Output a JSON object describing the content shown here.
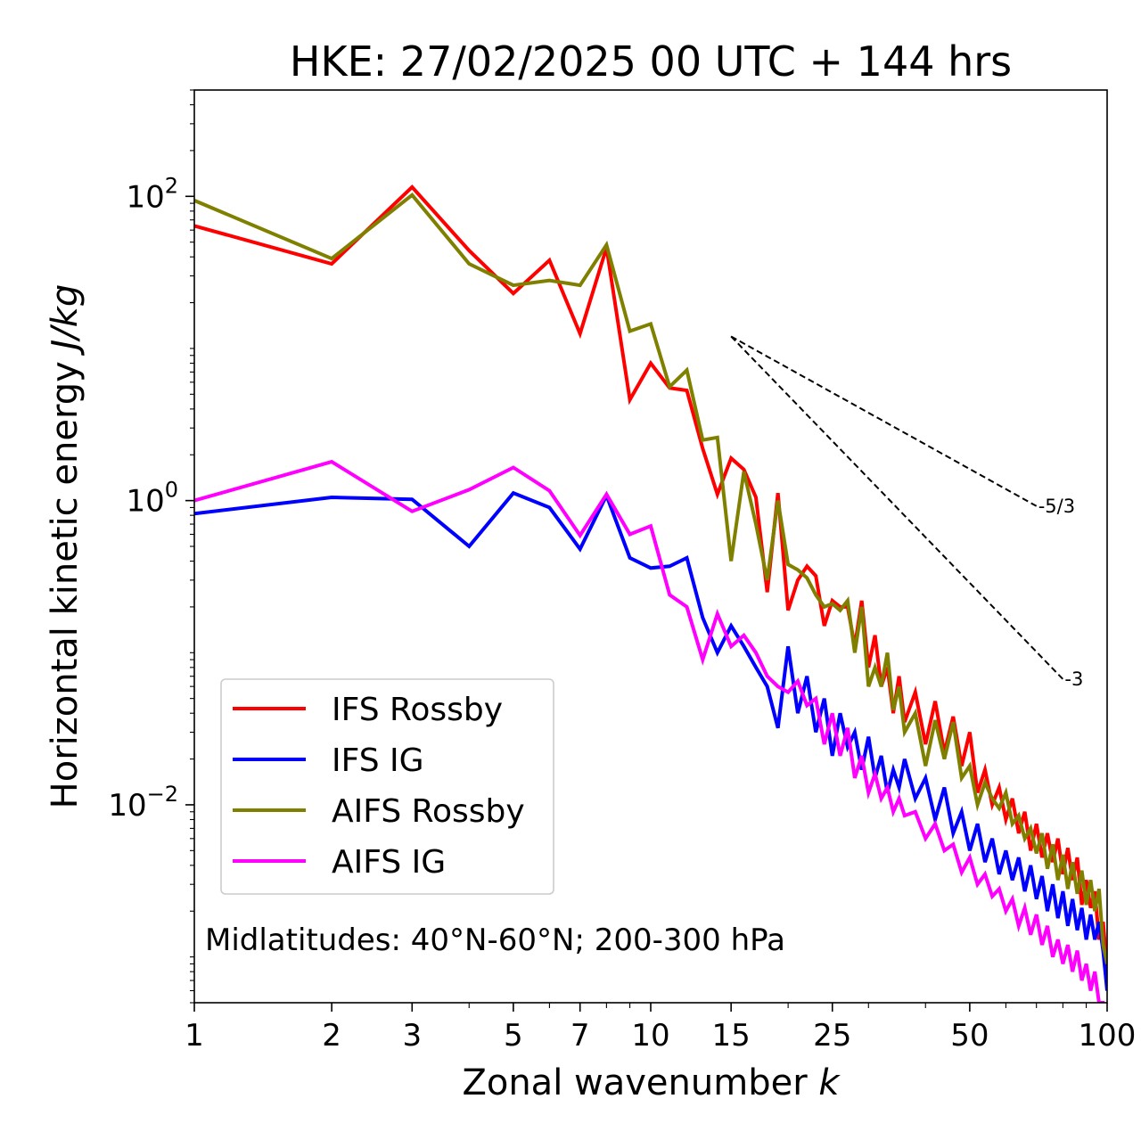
{
  "chart_data": {
    "type": "line",
    "title": "HKE: 27/02/2025 00 UTC + 144 hrs",
    "xlabel_main": "Zonal wavenumber ",
    "xlabel_italic": "k",
    "ylabel_main": "Horizontal kinetic energy ",
    "ylabel_italic": "J/kg",
    "xscale": "log",
    "yscale": "log",
    "xlim": [
      1,
      100
    ],
    "ylim": [
      0.0005,
      500
    ],
    "x_ticks": [
      {
        "value": 1,
        "label": "1"
      },
      {
        "value": 2,
        "label": "2"
      },
      {
        "value": 3,
        "label": "3"
      },
      {
        "value": 5,
        "label": "5"
      },
      {
        "value": 7,
        "label": "7"
      },
      {
        "value": 10,
        "label": "10"
      },
      {
        "value": 15,
        "label": "15"
      },
      {
        "value": 25,
        "label": "25"
      },
      {
        "value": 50,
        "label": "50"
      },
      {
        "value": 100,
        "label": "100"
      }
    ],
    "y_ticks": [
      {
        "value": 100,
        "base": "10",
        "exp": "2"
      },
      {
        "value": 1,
        "base": "10",
        "exp": "0"
      },
      {
        "value": 0.01,
        "base": "10",
        "exp": "−2"
      }
    ],
    "legend_position": "lower-left",
    "annotation": "Midlatitudes: 40°N-60°N; 200-300 hPa",
    "reference_lines": [
      {
        "label": "-5/3",
        "x": [
          15,
          70
        ],
        "y": [
          12,
          0.92
        ]
      },
      {
        "label": "-3",
        "x": [
          15,
          80
        ],
        "y": [
          12,
          0.067
        ]
      }
    ],
    "series": [
      {
        "name": "IFS Rossby",
        "color": "#ff0000",
        "x": [
          1,
          2,
          3,
          4,
          5,
          6,
          7,
          8,
          9,
          10,
          11,
          12,
          13,
          14,
          15,
          16,
          17,
          18,
          19,
          20,
          21,
          22,
          23,
          24,
          25,
          26,
          27,
          28,
          29,
          30,
          31,
          32,
          33,
          34,
          35,
          36,
          38,
          40,
          42,
          44,
          46,
          48,
          50,
          52,
          54,
          56,
          58,
          60,
          62,
          64,
          66,
          68,
          70,
          72,
          74,
          76,
          78,
          80,
          82,
          84,
          86,
          88,
          90,
          92,
          94,
          96,
          98,
          100
        ],
        "y": [
          64,
          36,
          115,
          44,
          23,
          38,
          12.5,
          46,
          4.6,
          8,
          5.5,
          5.3,
          2.2,
          1.1,
          1.9,
          1.6,
          1.05,
          0.25,
          1.12,
          0.19,
          0.3,
          0.37,
          0.32,
          0.15,
          0.22,
          0.2,
          0.2,
          0.11,
          0.22,
          0.08,
          0.13,
          0.06,
          0.08,
          0.04,
          0.07,
          0.035,
          0.055,
          0.025,
          0.048,
          0.022,
          0.038,
          0.018,
          0.03,
          0.012,
          0.017,
          0.01,
          0.013,
          0.008,
          0.011,
          0.0065,
          0.009,
          0.005,
          0.0075,
          0.0045,
          0.0065,
          0.0042,
          0.006,
          0.0035,
          0.0052,
          0.0032,
          0.0045,
          0.0022,
          0.0032,
          0.0021,
          0.0027,
          0.0013,
          0.0017,
          0.0008
        ]
      },
      {
        "name": "IFS IG",
        "color": "#0000ff",
        "x": [
          1,
          2,
          3,
          4,
          5,
          6,
          7,
          8,
          9,
          10,
          11,
          12,
          13,
          14,
          15,
          16,
          17,
          18,
          19,
          20,
          21,
          22,
          23,
          24,
          25,
          26,
          27,
          28,
          29,
          30,
          31,
          32,
          33,
          34,
          35,
          36,
          38,
          40,
          42,
          44,
          46,
          48,
          50,
          52,
          54,
          56,
          58,
          60,
          62,
          64,
          66,
          68,
          70,
          72,
          74,
          76,
          78,
          80,
          82,
          84,
          86,
          88,
          90,
          92,
          94,
          96,
          98,
          100
        ],
        "y": [
          0.82,
          1.05,
          1.02,
          0.5,
          1.12,
          0.9,
          0.48,
          1.08,
          0.42,
          0.36,
          0.37,
          0.42,
          0.17,
          0.1,
          0.15,
          0.11,
          0.08,
          0.06,
          0.032,
          0.11,
          0.04,
          0.07,
          0.03,
          0.05,
          0.021,
          0.04,
          0.024,
          0.03,
          0.017,
          0.028,
          0.015,
          0.021,
          0.012,
          0.017,
          0.013,
          0.02,
          0.011,
          0.015,
          0.008,
          0.013,
          0.0065,
          0.009,
          0.005,
          0.0075,
          0.0042,
          0.006,
          0.0035,
          0.005,
          0.0032,
          0.0045,
          0.0027,
          0.004,
          0.0024,
          0.0034,
          0.002,
          0.003,
          0.0018,
          0.0027,
          0.0016,
          0.0024,
          0.0015,
          0.0021,
          0.0013,
          0.0019,
          0.0013,
          0.0017,
          0.0011,
          0.0006
        ]
      },
      {
        "name": "AIFS Rossby",
        "color": "#808000",
        "x": [
          1,
          2,
          3,
          4,
          5,
          6,
          7,
          8,
          9,
          10,
          11,
          12,
          13,
          14,
          15,
          16,
          17,
          18,
          19,
          20,
          21,
          22,
          23,
          24,
          25,
          26,
          27,
          28,
          29,
          30,
          31,
          32,
          33,
          34,
          35,
          36,
          38,
          40,
          42,
          44,
          46,
          48,
          50,
          52,
          54,
          56,
          58,
          60,
          62,
          64,
          66,
          68,
          70,
          72,
          74,
          76,
          78,
          80,
          82,
          84,
          86,
          88,
          90,
          92,
          94,
          96,
          98,
          100
        ],
        "y": [
          94,
          39,
          102,
          36,
          26,
          28,
          26,
          48,
          13,
          14.5,
          5.6,
          7.2,
          2.5,
          2.6,
          0.4,
          1.55,
          0.7,
          0.3,
          1,
          0.38,
          0.35,
          0.31,
          0.24,
          0.2,
          0.21,
          0.19,
          0.22,
          0.1,
          0.2,
          0.06,
          0.08,
          0.06,
          0.1,
          0.042,
          0.06,
          0.03,
          0.04,
          0.018,
          0.036,
          0.02,
          0.035,
          0.015,
          0.018,
          0.01,
          0.014,
          0.011,
          0.0095,
          0.012,
          0.0075,
          0.0085,
          0.006,
          0.007,
          0.0048,
          0.0065,
          0.0038,
          0.0055,
          0.0032,
          0.0047,
          0.0028,
          0.0042,
          0.0026,
          0.0037,
          0.0022,
          0.0032,
          0.002,
          0.0028,
          0.0012,
          0.0009
        ]
      },
      {
        "name": "AIFS IG",
        "color": "#ff00ff",
        "x": [
          1,
          2,
          3,
          4,
          5,
          6,
          7,
          8,
          9,
          10,
          11,
          12,
          13,
          14,
          15,
          16,
          17,
          18,
          19,
          20,
          21,
          22,
          23,
          24,
          25,
          26,
          27,
          28,
          29,
          30,
          31,
          32,
          33,
          34,
          35,
          36,
          38,
          40,
          42,
          44,
          46,
          48,
          50,
          52,
          54,
          56,
          58,
          60,
          62,
          64,
          66,
          68,
          70,
          72,
          74,
          76,
          78,
          80,
          82,
          84,
          86,
          88,
          90,
          92,
          94,
          96,
          98,
          100
        ],
        "y": [
          1,
          1.8,
          0.85,
          1.18,
          1.65,
          1.16,
          0.59,
          1.1,
          0.6,
          0.68,
          0.24,
          0.2,
          0.09,
          0.18,
          0.11,
          0.13,
          0.1,
          0.07,
          0.06,
          0.055,
          0.065,
          0.045,
          0.05,
          0.025,
          0.04,
          0.021,
          0.032,
          0.015,
          0.021,
          0.012,
          0.016,
          0.011,
          0.013,
          0.009,
          0.011,
          0.0085,
          0.009,
          0.006,
          0.0075,
          0.005,
          0.0055,
          0.0036,
          0.0045,
          0.003,
          0.0035,
          0.0025,
          0.0028,
          0.002,
          0.0024,
          0.0016,
          0.0021,
          0.0014,
          0.0019,
          0.0012,
          0.0016,
          0.001,
          0.0013,
          0.0009,
          0.0012,
          0.0008,
          0.0011,
          0.0007,
          0.0009,
          0.0006,
          0.0008,
          0.0005,
          0.0005,
          0.0004
        ]
      }
    ]
  }
}
